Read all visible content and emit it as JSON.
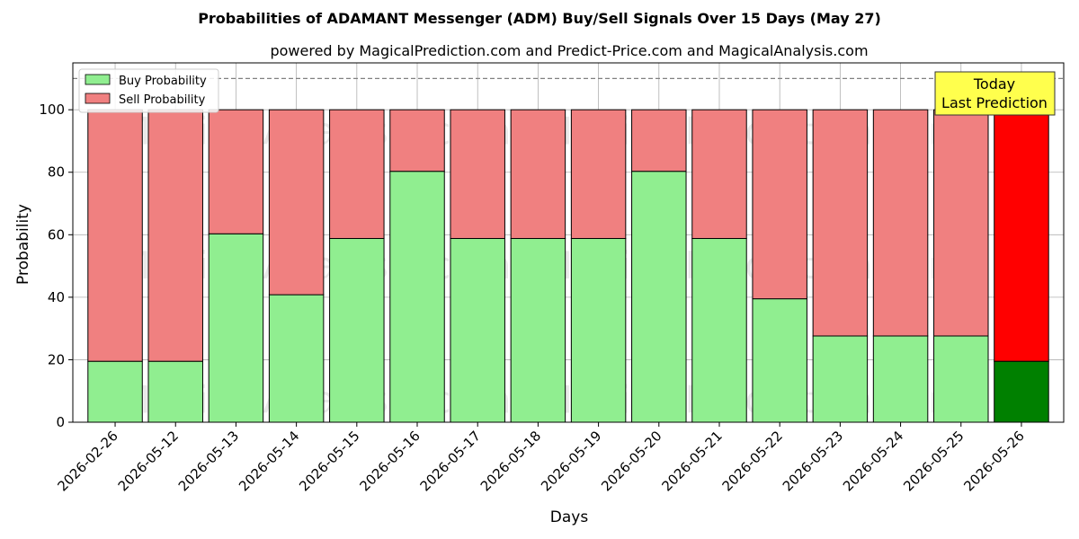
{
  "chart_data": {
    "type": "bar",
    "stacked": true,
    "title": "Probabilities of ADAMANT Messenger (ADM) Buy/Sell Signals Over 15 Days (May 27)",
    "subtitle": "powered by MagicalPrediction.com and Predict-Price.com and MagicalAnalysis.com",
    "xlabel": "Days",
    "ylabel": "Probability",
    "ylim": [
      0,
      115
    ],
    "yticks": [
      0,
      20,
      40,
      60,
      80,
      100
    ],
    "reference_line": 110,
    "grid": true,
    "legend_position": "top-left",
    "categories": [
      "2026-02-26",
      "2026-05-12",
      "2026-05-13",
      "2026-05-14",
      "2026-05-15",
      "2026-05-16",
      "2026-05-17",
      "2026-05-18",
      "2026-05-19",
      "2026-05-20",
      "2026-05-21",
      "2026-05-22",
      "2026-05-23",
      "2026-05-24",
      "2026-05-25",
      "2026-05-26"
    ],
    "series": [
      {
        "name": "Buy Probability",
        "color": "#90ee90",
        "values": [
          19.5,
          19.5,
          60.3,
          40.8,
          58.8,
          80.3,
          58.8,
          58.8,
          58.8,
          80.3,
          58.8,
          39.5,
          27.6,
          27.6,
          27.6,
          19.5
        ]
      },
      {
        "name": "Sell Probability",
        "color": "#f08080",
        "values": [
          80.5,
          80.5,
          39.7,
          59.2,
          41.2,
          19.7,
          41.2,
          41.2,
          41.2,
          19.7,
          41.2,
          60.5,
          72.4,
          72.4,
          72.4,
          80.5
        ]
      }
    ],
    "highlight": {
      "index": 15,
      "buy_color": "#008000",
      "sell_color": "#ff0000"
    },
    "annotation": {
      "lines": [
        "Today",
        "Last Prediction"
      ],
      "background": "#ffff4d"
    },
    "watermarks": [
      "MagicalAnalysis.com",
      "MagicalPrediction.com"
    ]
  }
}
